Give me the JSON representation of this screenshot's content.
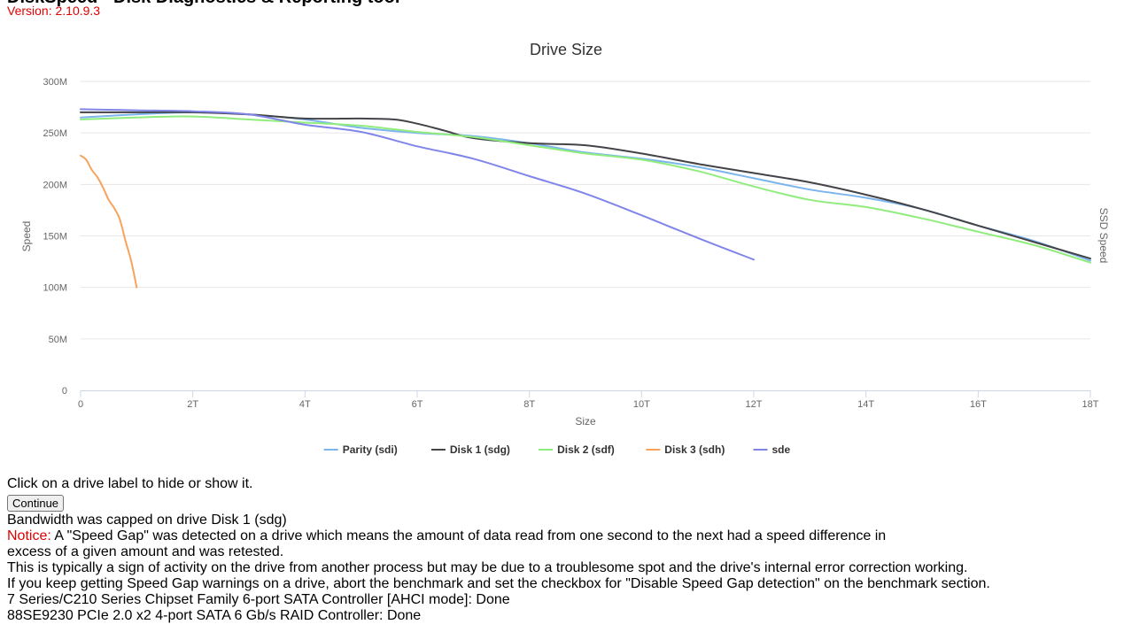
{
  "header": {
    "title_partial": "DiskSpeed - Disk Diagnostics & Reporting tool",
    "version": "Version: 2.10.9.3"
  },
  "chart_data": {
    "type": "line",
    "title": "Drive Size",
    "xlabel": "Size",
    "ylabel": "Speed",
    "y2label": "SSD Speed",
    "x_unit": "TB",
    "xlim": [
      0,
      18
    ],
    "ylim": [
      0,
      300
    ],
    "x_ticks": [
      0,
      2,
      4,
      6,
      8,
      10,
      12,
      14,
      16,
      18
    ],
    "x_tick_labels": [
      "0",
      "2T",
      "4T",
      "6T",
      "8T",
      "10T",
      "12T",
      "14T",
      "16T",
      "18T"
    ],
    "y_ticks": [
      0,
      50,
      100,
      150,
      200,
      250,
      300
    ],
    "y_tick_labels": [
      "0",
      "50M",
      "100M",
      "150M",
      "200M",
      "250M",
      "300M"
    ],
    "grid": true,
    "legend_position": "bottom",
    "series": [
      {
        "name": "Parity (sdi)",
        "color": "#7cb5ec",
        "x": [
          0,
          1,
          2,
          3,
          4,
          5,
          6,
          7,
          8,
          9,
          10,
          11,
          12,
          13,
          14,
          15,
          16,
          17,
          18
        ],
        "values": [
          265,
          268,
          270,
          268,
          263,
          255,
          250,
          247,
          240,
          231,
          225,
          217,
          206,
          195,
          187,
          176,
          160,
          145,
          126
        ]
      },
      {
        "name": "Disk 1 (sdg)",
        "color": "#434348",
        "x": [
          0,
          1,
          2,
          3,
          4,
          5,
          5.6,
          6,
          6.5,
          7,
          8,
          9,
          10,
          11,
          12,
          13,
          14,
          15,
          16,
          17,
          18
        ],
        "values": [
          270,
          270,
          270,
          268,
          264,
          264,
          263,
          259,
          252,
          245,
          240,
          238,
          230,
          220,
          211,
          202,
          190,
          176,
          160,
          144,
          128
        ]
      },
      {
        "name": "Disk 2 (sdf)",
        "color": "#90ed7d",
        "x": [
          0,
          1,
          2,
          3,
          4,
          5,
          6,
          7,
          8,
          9,
          10,
          11,
          12,
          13,
          14,
          15,
          16,
          17,
          18
        ],
        "values": [
          263,
          265,
          266,
          263,
          260,
          257,
          251,
          246,
          238,
          230,
          224,
          213,
          198,
          185,
          178,
          167,
          154,
          141,
          124
        ]
      },
      {
        "name": "Disk 3 (sdh)",
        "color": "#f7a35c",
        "x": [
          0,
          0.1,
          0.2,
          0.3,
          0.4,
          0.5,
          0.6,
          0.7,
          0.8,
          0.9,
          1.0
        ],
        "values": [
          228,
          224,
          214,
          207,
          197,
          185,
          177,
          166,
          145,
          126,
          100
        ]
      },
      {
        "name": "sde",
        "color": "#8085e9",
        "x": [
          0,
          1,
          2,
          3,
          4,
          5,
          6,
          7,
          8,
          9,
          10,
          11,
          12
        ],
        "values": [
          273,
          272,
          271,
          268,
          258,
          251,
          237,
          225,
          208,
          191,
          170,
          148,
          127
        ]
      }
    ]
  },
  "messages": {
    "hint": "Click on a drive label to hide or show it.",
    "continue_label": "Continue",
    "bandwidth": "Bandwidth was capped on drive Disk 1 (sdg)",
    "notice_label": "Notice:",
    "notice_text": " A \"Speed Gap\" was detected on a drive which means the amount of data read from one second to the next had a speed difference in excess of a given amount and was retested.",
    "typical": "This is typically a sign of activity on the drive from another process but may be due to a troublesome spot and the drive's internal error correction working.",
    "advice": "If you keep getting Speed Gap warnings on a drive, abort the benchmark and set the checkbox for \"Disable Speed Gap detection\" on the benchmark section.",
    "controller1": "7 Series/C210 Series Chipset Family 6-port SATA Controller [AHCI mode]: Done",
    "controller2": "88SE9230 PCIe 2.0 x2 4-port SATA 6 Gb/s RAID Controller: Done"
  }
}
